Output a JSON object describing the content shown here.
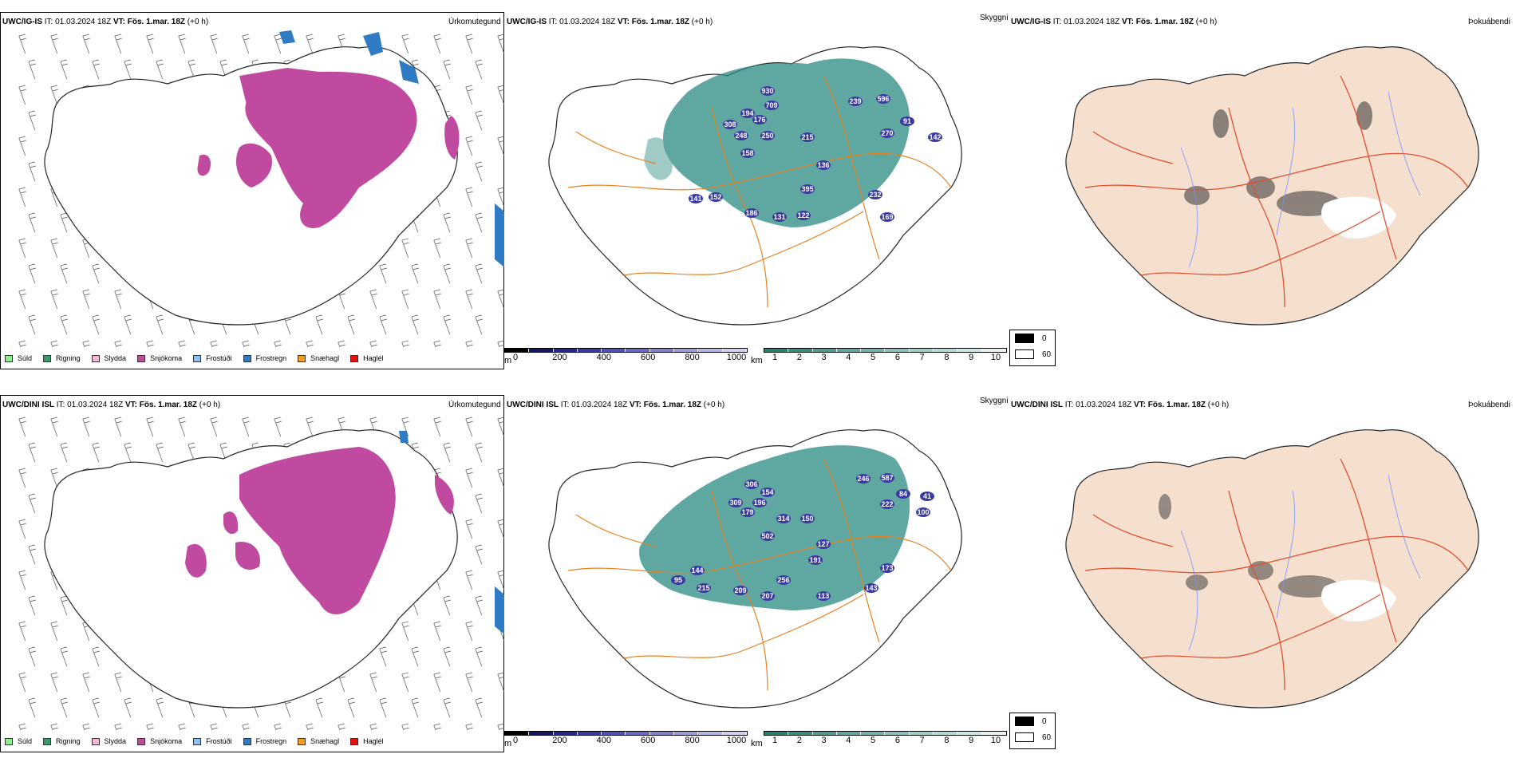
{
  "rows": [
    {
      "precip_header": {
        "model": "UWC/IG-IS",
        "it_label": "IT:",
        "it": "01.03.2024 18Z",
        "vt_label": "VT:",
        "vt": "Fös. 1.mar. 18Z",
        "lead": "(+0 h)"
      },
      "precip_title": "Úrkomutegund",
      "cloud_header": {
        "model": "UWC/IG-IS",
        "it_label": "IT:",
        "it": "01.03.2024 18Z",
        "vt_label": "VT:",
        "vt": "Fös. 1.mar. 18Z",
        "lead": "(+0 h)"
      },
      "cloud_title": "Skyggni",
      "fog_header": {
        "model": "UWC/IG-IS",
        "it_label": "IT:",
        "it": "01.03.2024 18Z",
        "vt_label": "VT:",
        "vt": "Fös. 1.mar. 18Z",
        "lead": "(+0 h)"
      },
      "fog_title": "Þokuábendi",
      "peaks": [
        "930",
        "709",
        "194",
        "176",
        "308",
        "248",
        "250",
        "158",
        "239",
        "596",
        "91",
        "270",
        "142",
        "215",
        "136",
        "395",
        "152",
        "141",
        "186",
        "131",
        "122",
        "232",
        "169"
      ]
    },
    {
      "precip_header": {
        "model": "UWC/DINI ISL",
        "it_label": "IT:",
        "it": "01.03.2024 18Z",
        "vt_label": "VT:",
        "vt": "Fös. 1.mar. 18Z",
        "lead": "(+0 h)"
      },
      "precip_title": "Úrkomutegund",
      "cloud_header": {
        "model": "UWC/DINI ISL",
        "it_label": "IT:",
        "it": "01.03.2024 18Z",
        "vt_label": "VT:",
        "vt": "Fös. 1.mar. 18Z",
        "lead": "(+0 h)"
      },
      "cloud_title": "Skyggni",
      "fog_header": {
        "model": "UWC/DINI ISL",
        "it_label": "IT:",
        "it": "01.03.2024 18Z",
        "vt_label": "VT:",
        "vt": "Fös. 1.mar. 18Z",
        "lead": "(+0 h)"
      },
      "fog_title": "Þokuábendi",
      "peaks": [
        "306",
        "154",
        "309",
        "196",
        "179",
        "314",
        "150",
        "246",
        "587",
        "84",
        "222",
        "41",
        "100",
        "502",
        "127",
        "191",
        "173",
        "95",
        "144",
        "215",
        "256",
        "207",
        "113",
        "143",
        "209"
      ]
    }
  ],
  "precip_legend": [
    {
      "label": "Súld",
      "color": "#90ee90"
    },
    {
      "label": "Rigning",
      "color": "#3a9a6a"
    },
    {
      "label": "Slydda",
      "color": "#f4b8d8"
    },
    {
      "label": "Snjókoma",
      "color": "#c04aa0"
    },
    {
      "label": "Frostúði",
      "color": "#8ec0f0"
    },
    {
      "label": "Frostregn",
      "color": "#2f7cc4"
    },
    {
      "label": "Snæhagl",
      "color": "#f59a20"
    },
    {
      "label": "Haglél",
      "color": "#e81010"
    }
  ],
  "elev_bar": {
    "unit": "m",
    "ticks": [
      "0",
      "200",
      "400",
      "600",
      "800",
      "1000"
    ],
    "colors": [
      "#000000",
      "#151560",
      "#25258a",
      "#3a3aa0",
      "#5050b0",
      "#6a6ac0",
      "#8080c8",
      "#9a9ad5",
      "#b5b5e2",
      "#d0d0ee"
    ]
  },
  "vis_bar": {
    "unit": "km",
    "ticks": [
      "1",
      "2",
      "3",
      "4",
      "5",
      "6",
      "7",
      "8",
      "9",
      "10"
    ],
    "colors": [
      "#2a7e78",
      "#3b8b85",
      "#4d9892",
      "#60a59f",
      "#74b2ad",
      "#89c0bb",
      "#9fcdc9",
      "#b6dad7",
      "#cde7e5",
      "#e6f3f2"
    ]
  },
  "fog_legend": [
    {
      "label": "0",
      "color": "#000000"
    },
    {
      "label": "60",
      "color": "#ffffff"
    }
  ],
  "colors": {
    "snow": "#c04aa0",
    "freezing": "#2f7cc4",
    "vis": "#2a8a82",
    "land_fog": "#f5e0d0",
    "roads": "#e88020",
    "rivers": "#7a90ff"
  }
}
